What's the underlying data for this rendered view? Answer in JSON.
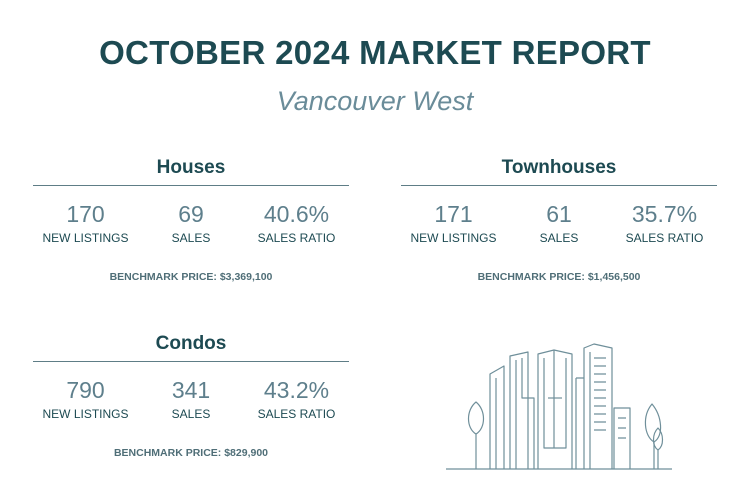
{
  "header": {
    "title": "OCTOBER 2024 MARKET REPORT",
    "subtitle": "Vancouver West"
  },
  "sections": [
    {
      "title": "Houses",
      "stats": [
        {
          "value": "170",
          "label": "NEW LISTINGS"
        },
        {
          "value": "69",
          "label": "SALES"
        },
        {
          "value": "40.6%",
          "label": "SALES RATIO"
        }
      ],
      "benchmark": "BENCHMARK PRICE: $3,369,100"
    },
    {
      "title": "Townhouses",
      "stats": [
        {
          "value": "171",
          "label": "NEW LISTINGS"
        },
        {
          "value": "61",
          "label": "SALES"
        },
        {
          "value": "35.7%",
          "label": "SALES RATIO"
        }
      ],
      "benchmark": "BENCHMARK PRICE: $1,456,500"
    },
    {
      "title": "Condos",
      "stats": [
        {
          "value": "790",
          "label": "NEW LISTINGS"
        },
        {
          "value": "341",
          "label": "SALES"
        },
        {
          "value": "43.2%",
          "label": "SALES RATIO"
        }
      ],
      "benchmark": "BENCHMARK PRICE: $829,900"
    }
  ],
  "colors": {
    "title": "#1d4a52",
    "subtitle": "#6a8c99",
    "numbers": "#5e7f8c",
    "illustration": "#6f8f9a"
  },
  "illustration": {
    "icon": "city-skyline-icon"
  }
}
